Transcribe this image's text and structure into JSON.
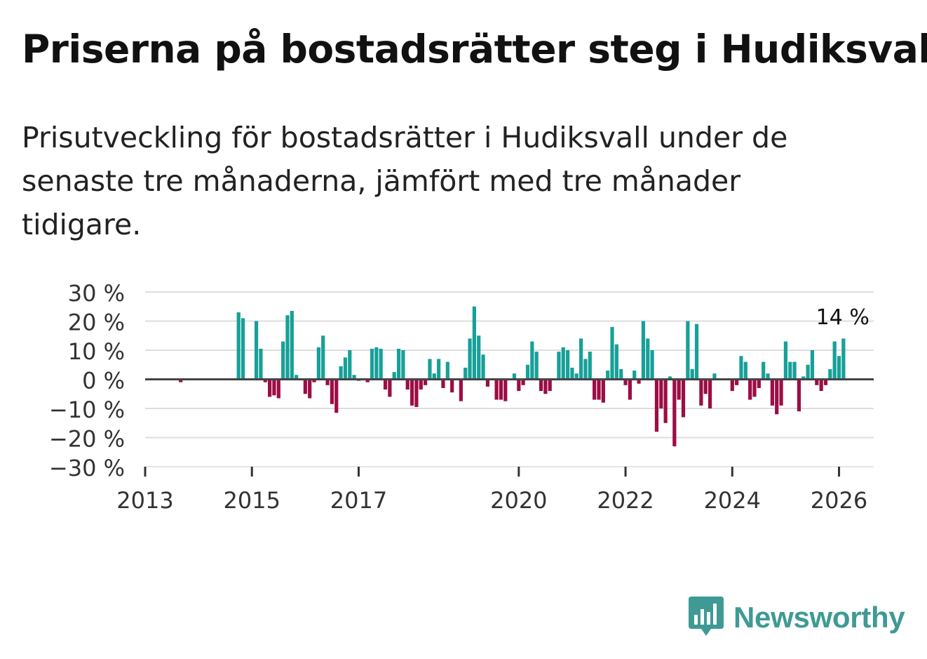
{
  "title": "Priserna på bostadsrätter steg i Hudiksvall",
  "subtitle": "Prisutveckling för bostadsrätter i Hudiksvall under de senaste tre månaderna, jämfört med tre månader tidigare.",
  "logo": {
    "text": "Newsworthy",
    "icon": "newsworthy-chart-bubble-icon"
  },
  "colors": {
    "positive": "#17a098",
    "negative": "#9c0d45",
    "zero_line": "#444444",
    "grid": "#dddddd",
    "logo": "#3f9a95"
  },
  "chart_data": {
    "type": "bar",
    "title": "Priserna på bostadsrätter steg i Hudiksvall",
    "xlabel": "",
    "ylabel": "",
    "ylim": [
      -30,
      30
    ],
    "y_ticks": [
      30,
      20,
      10,
      0,
      -10,
      -20,
      -30
    ],
    "y_tick_labels": [
      "30 %",
      "20 %",
      "10 %",
      "0 %",
      "−10 %",
      "−20 %",
      "−30 %"
    ],
    "x_ticks": [
      2013,
      2015,
      2017,
      2020,
      2022,
      2024,
      2026
    ],
    "x_tick_labels": [
      "2013",
      "2015",
      "2017",
      "2020",
      "2022",
      "2024",
      "2026"
    ],
    "xlim": [
      2013,
      2026.65
    ],
    "start": 2013.0,
    "step_years": 0.0833333,
    "grid": true,
    "last_value_label": "14 %",
    "values": [
      0,
      0,
      0,
      0,
      0,
      0,
      0,
      0,
      -1,
      0,
      0,
      0,
      0,
      0,
      0,
      0,
      0,
      0,
      0,
      0,
      0,
      23,
      21,
      0,
      0,
      20,
      10.5,
      -1,
      -6,
      -5.5,
      -6.5,
      13,
      22,
      23.5,
      1.5,
      0,
      -5,
      -6.5,
      -1,
      11,
      15,
      -2,
      -8.5,
      -11.5,
      4.5,
      7.5,
      10,
      1.5,
      -0.5,
      0,
      -1,
      10.5,
      11,
      10.5,
      -3.5,
      -6,
      2.5,
      10.5,
      10,
      -3.5,
      -9,
      -9.5,
      -3.5,
      -2,
      7,
      2,
      7,
      -3,
      6,
      -4.5,
      0,
      -7.5,
      4,
      14,
      25,
      15,
      8.5,
      -2.5,
      0,
      -7,
      -7,
      -7.5,
      0,
      2,
      -4,
      -2,
      5,
      13,
      9.5,
      -4,
      -5,
      -4,
      0,
      9.5,
      11,
      10,
      4,
      2,
      14,
      7,
      9.5,
      -7,
      -7,
      -8,
      3,
      18,
      12,
      3.5,
      -2,
      -7,
      3,
      -1.5,
      20,
      14,
      10,
      -18,
      -10,
      -15,
      1,
      -23,
      -7,
      -13,
      20,
      3.5,
      19,
      -9,
      -5,
      -10,
      2,
      0,
      0,
      0,
      -4,
      -2,
      8,
      6,
      -7,
      -6,
      -3,
      6,
      2,
      -9,
      -12,
      -9,
      13,
      6,
      6,
      -11,
      1,
      5,
      10,
      -2,
      -4,
      -2,
      3.5,
      13,
      8,
      14
    ]
  }
}
